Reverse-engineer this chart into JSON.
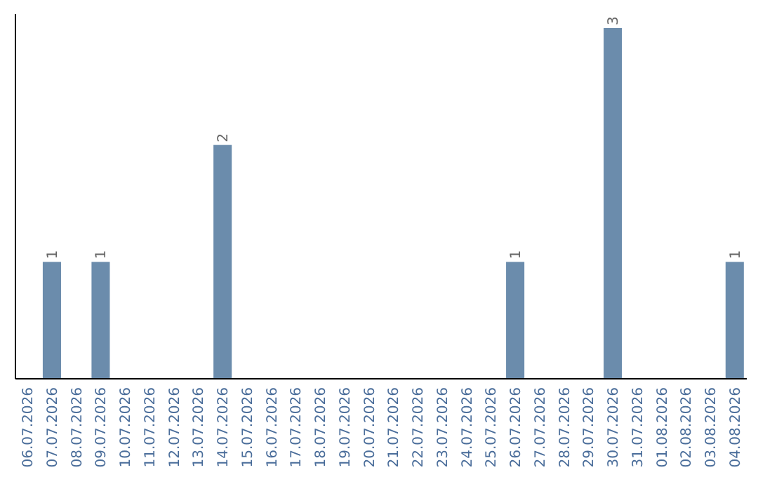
{
  "chart_data": {
    "type": "bar",
    "categories": [
      "06.07.2026",
      "07.07.2026",
      "08.07.2026",
      "09.07.2026",
      "10.07.2026",
      "11.07.2026",
      "12.07.2026",
      "13.07.2026",
      "14.07.2026",
      "15.07.2026",
      "16.07.2026",
      "17.07.2026",
      "18.07.2026",
      "19.07.2026",
      "20.07.2026",
      "21.07.2026",
      "22.07.2026",
      "23.07.2026",
      "24.07.2026",
      "25.07.2026",
      "26.07.2026",
      "27.07.2026",
      "28.07.2026",
      "29.07.2026",
      "30.07.2026",
      "31.07.2026",
      "01.08.2026",
      "02.08.2026",
      "03.08.2026",
      "04.08.2026"
    ],
    "values": [
      0,
      1,
      0,
      1,
      0,
      0,
      0,
      0,
      2,
      0,
      0,
      0,
      0,
      0,
      0,
      0,
      0,
      0,
      0,
      0,
      1,
      0,
      0,
      0,
      3,
      0,
      0,
      0,
      0,
      1
    ],
    "value_labels": [
      null,
      "1",
      null,
      "1",
      null,
      null,
      null,
      null,
      "2",
      null,
      null,
      null,
      null,
      null,
      null,
      null,
      null,
      null,
      null,
      null,
      "1",
      null,
      null,
      null,
      "3",
      null,
      null,
      null,
      null,
      "1"
    ],
    "color": "#6b8cac"
  }
}
